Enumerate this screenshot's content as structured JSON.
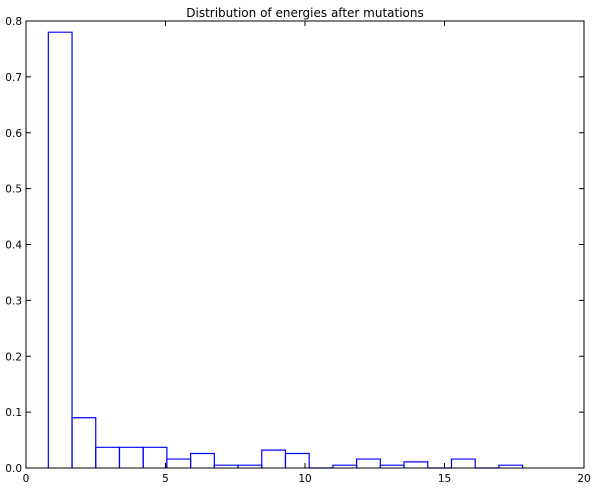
{
  "chart_data": {
    "type": "histogram",
    "title": "Distribution of energies after mutations",
    "xlabel": "",
    "ylabel": "",
    "xlim": [
      0,
      20
    ],
    "ylim": [
      0,
      0.8
    ],
    "x_ticks": [
      0,
      5,
      10,
      15,
      20
    ],
    "y_ticks": [
      0.0,
      0.1,
      0.2,
      0.3,
      0.4,
      0.5,
      0.6,
      0.7,
      0.8
    ],
    "x_tick_labels": [
      "0",
      "5",
      "10",
      "15",
      "20"
    ],
    "y_tick_labels": [
      "0.0",
      "0.1",
      "0.2",
      "0.3",
      "0.4",
      "0.5",
      "0.6",
      "0.7",
      "0.8"
    ],
    "grid": false,
    "line_color": "#0000ff",
    "bins": [
      {
        "x0": 0.8,
        "x1": 1.65,
        "value": 0.78
      },
      {
        "x0": 1.65,
        "x1": 2.5,
        "value": 0.09
      },
      {
        "x0": 2.5,
        "x1": 3.35,
        "value": 0.037
      },
      {
        "x0": 3.35,
        "x1": 4.2,
        "value": 0.037
      },
      {
        "x0": 4.2,
        "x1": 5.05,
        "value": 0.037
      },
      {
        "x0": 5.05,
        "x1": 5.9,
        "value": 0.016
      },
      {
        "x0": 5.9,
        "x1": 6.75,
        "value": 0.026
      },
      {
        "x0": 6.75,
        "x1": 7.6,
        "value": 0.005
      },
      {
        "x0": 7.6,
        "x1": 8.45,
        "value": 0.005
      },
      {
        "x0": 8.45,
        "x1": 9.3,
        "value": 0.032
      },
      {
        "x0": 9.3,
        "x1": 10.15,
        "value": 0.026
      },
      {
        "x0": 10.15,
        "x1": 11.0,
        "value": 0.0
      },
      {
        "x0": 11.0,
        "x1": 11.85,
        "value": 0.005
      },
      {
        "x0": 11.85,
        "x1": 12.7,
        "value": 0.016
      },
      {
        "x0": 12.7,
        "x1": 13.55,
        "value": 0.005
      },
      {
        "x0": 13.55,
        "x1": 14.4,
        "value": 0.011
      },
      {
        "x0": 14.4,
        "x1": 15.25,
        "value": 0.0
      },
      {
        "x0": 15.25,
        "x1": 16.1,
        "value": 0.016
      },
      {
        "x0": 16.1,
        "x1": 16.95,
        "value": 0.0
      },
      {
        "x0": 16.95,
        "x1": 17.8,
        "value": 0.005
      }
    ]
  }
}
